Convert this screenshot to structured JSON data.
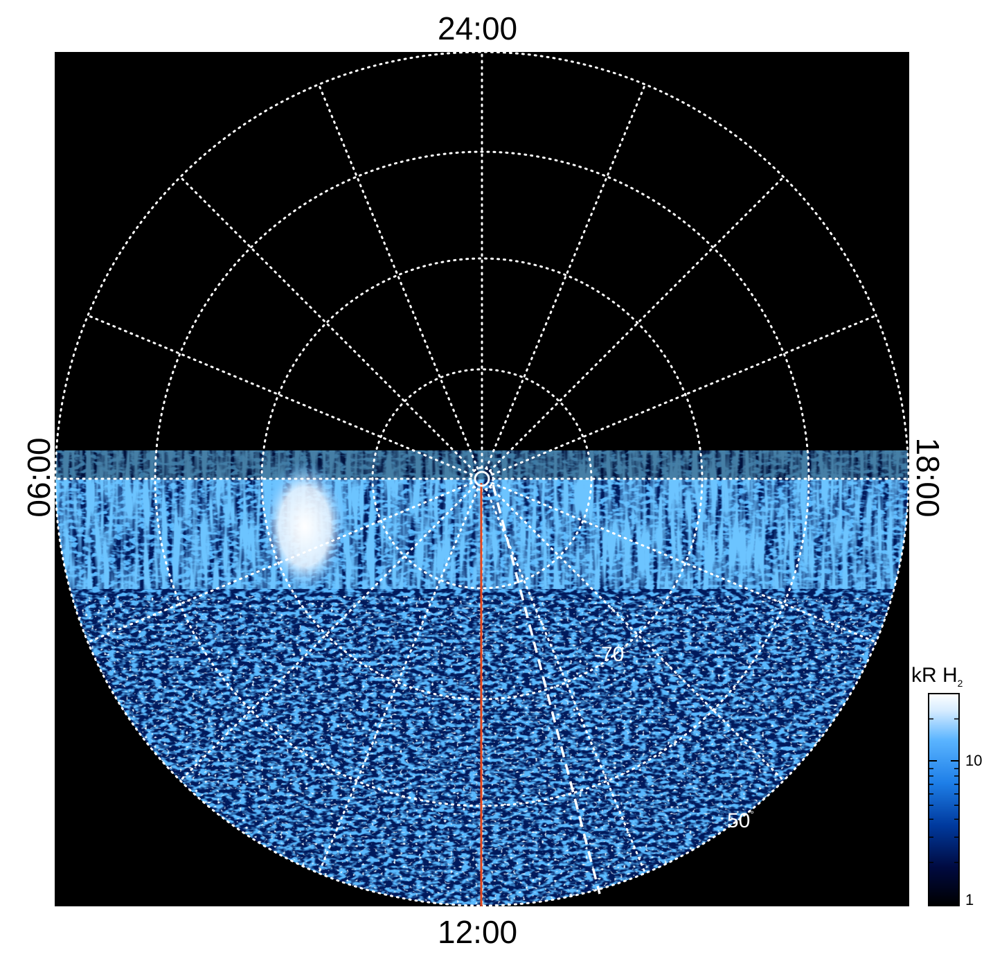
{
  "local_time_labels": {
    "top": "24:00",
    "bottom": "12:00",
    "left": "06:00",
    "right": "18:00"
  },
  "latitude_labels": {
    "inner": "-70",
    "outer": "50",
    "degree_symbol": "°"
  },
  "colorbar": {
    "title_main": "kR H",
    "title_subscript": "2",
    "ticks": [
      "10",
      "1"
    ],
    "scale": "log",
    "range": [
      1,
      30
    ],
    "colors": [
      "#000000",
      "#000a40",
      "#003a9e",
      "#1e7fe8",
      "#5ab4ff",
      "#d6ecff",
      "#ffffff"
    ]
  },
  "plot": {
    "background": "#000000",
    "grid_color": "#ffffff",
    "grid_style": "dotted",
    "noon_meridian_color": "#e0461e",
    "dashed_line_color": "#ffffff",
    "brightest_patch_color": "#ffffff"
  }
}
